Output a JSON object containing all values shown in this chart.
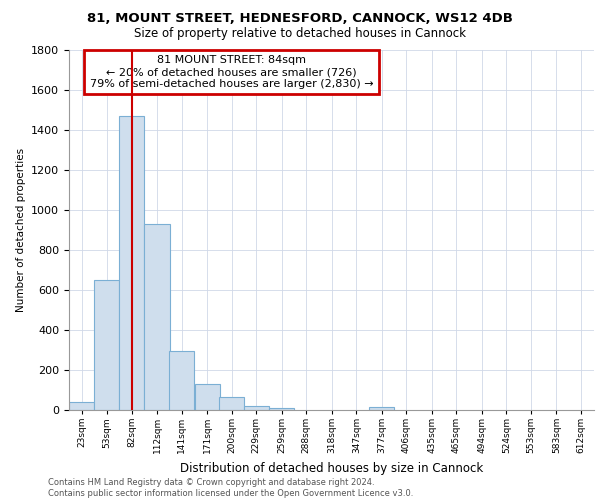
{
  "title_line1": "81, MOUNT STREET, HEDNESFORD, CANNOCK, WS12 4DB",
  "title_line2": "Size of property relative to detached houses in Cannock",
  "xlabel": "Distribution of detached houses by size in Cannock",
  "ylabel": "Number of detached properties",
  "annotation_line1": "81 MOUNT STREET: 84sqm",
  "annotation_line2": "← 20% of detached houses are smaller (726)",
  "annotation_line3": "79% of semi-detached houses are larger (2,830) →",
  "property_line_x": 82,
  "bar_color": "#cfdeed",
  "bar_edge_color": "#7bafd4",
  "vline_color": "#cc0000",
  "annotation_box_color": "#cc0000",
  "tick_labels": [
    "23sqm",
    "53sqm",
    "82sqm",
    "112sqm",
    "141sqm",
    "171sqm",
    "200sqm",
    "229sqm",
    "259sqm",
    "288sqm",
    "318sqm",
    "347sqm",
    "377sqm",
    "406sqm",
    "435sqm",
    "465sqm",
    "494sqm",
    "524sqm",
    "553sqm",
    "583sqm",
    "612sqm"
  ],
  "bin_width": 29.5,
  "bin_starts": [
    8,
    38,
    67,
    97,
    126,
    156,
    185,
    214,
    244,
    273,
    303,
    332,
    362,
    391,
    421,
    450,
    480,
    509,
    538,
    568,
    597
  ],
  "values": [
    40,
    650,
    1470,
    930,
    295,
    130,
    65,
    20,
    10,
    0,
    0,
    0,
    15,
    0,
    0,
    0,
    0,
    0,
    0,
    0,
    0
  ],
  "xlim_min": 8,
  "xlim_max": 627,
  "ylim": [
    0,
    1800
  ],
  "yticks": [
    0,
    200,
    400,
    600,
    800,
    1000,
    1200,
    1400,
    1600,
    1800
  ],
  "footnote": "Contains HM Land Registry data © Crown copyright and database right 2024.\nContains public sector information licensed under the Open Government Licence v3.0.",
  "bg_color": "#ffffff",
  "grid_color": "#d0d8e8"
}
